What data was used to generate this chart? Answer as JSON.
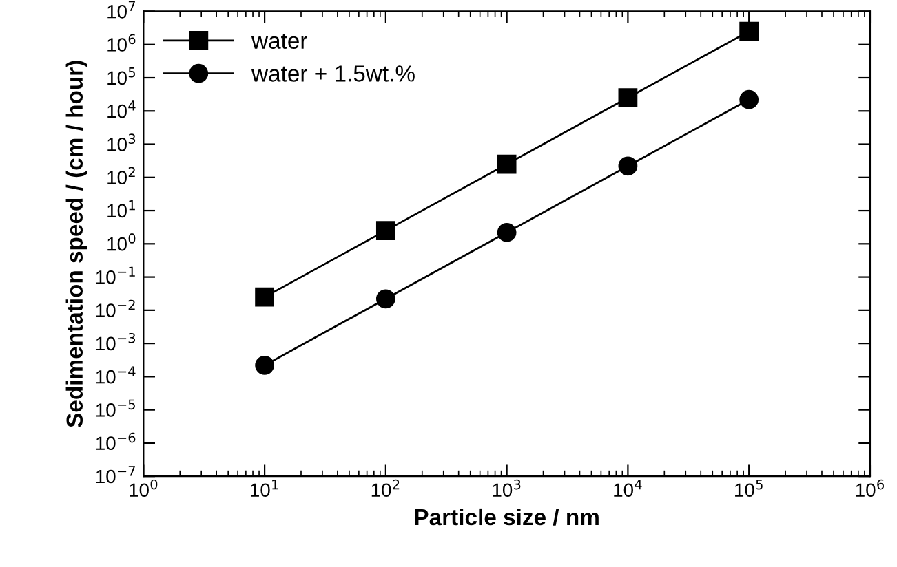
{
  "chart_data": {
    "type": "line",
    "xlabel": "Particle size / nm",
    "ylabel": "Sedimentation speed / (cm / hour)",
    "log": "xy",
    "legend": "top left",
    "grid": false,
    "xlim": [
      1,
      1000000
    ],
    "ylim": [
      1e-07,
      10000000.0
    ],
    "xticks": [
      {
        "value": 1,
        "label": "10$^{0}$"
      },
      {
        "value": 10,
        "label": "10$^{1}$"
      },
      {
        "value": 100,
        "label": "10$^{2}$"
      },
      {
        "value": 1000,
        "label": "10$^{3}$"
      },
      {
        "value": 10000,
        "label": "10$^{4}$"
      },
      {
        "value": 100000,
        "label": "10$^{5}$"
      },
      {
        "value": 1000000,
        "label": "10$^{6}$"
      }
    ],
    "yticks": [
      {
        "value": 1e-07,
        "label": "10$^{−7}$"
      },
      {
        "value": 1e-06,
        "label": "10$^{−6}$"
      },
      {
        "value": 1e-05,
        "label": "10$^{−5}$"
      },
      {
        "value": 0.0001,
        "label": "10$^{−4}$"
      },
      {
        "value": 0.001,
        "label": "10$^{−3}$"
      },
      {
        "value": 0.01,
        "label": "10$^{−2}$"
      },
      {
        "value": 0.1,
        "label": "10$^{−1}$"
      },
      {
        "value": 1,
        "label": "10$^{0}$"
      },
      {
        "value": 10,
        "label": "10$^{1}$"
      },
      {
        "value": 100,
        "label": "10$^{2}$"
      },
      {
        "value": 1000,
        "label": "10$^{3}$"
      },
      {
        "value": 10000,
        "label": "10$^{4}$"
      },
      {
        "value": 100000,
        "label": "10$^{5}$"
      },
      {
        "value": 1000000,
        "label": "10$^{6}$"
      },
      {
        "value": 10000000,
        "label": "10$^{7}$"
      }
    ],
    "x": [
      10,
      100,
      1000,
      10000,
      100000
    ],
    "series": [
      {
        "name": "water",
        "color": "#000000",
        "marker": "square",
        "values": [
          0.025,
          2.5,
          250,
          25000,
          2500000
        ]
      },
      {
        "name": "water + 1.5wt.%",
        "color": "#000000",
        "marker": "circle",
        "values": [
          0.00022,
          0.022,
          2.2,
          220,
          22000
        ]
      }
    ]
  }
}
